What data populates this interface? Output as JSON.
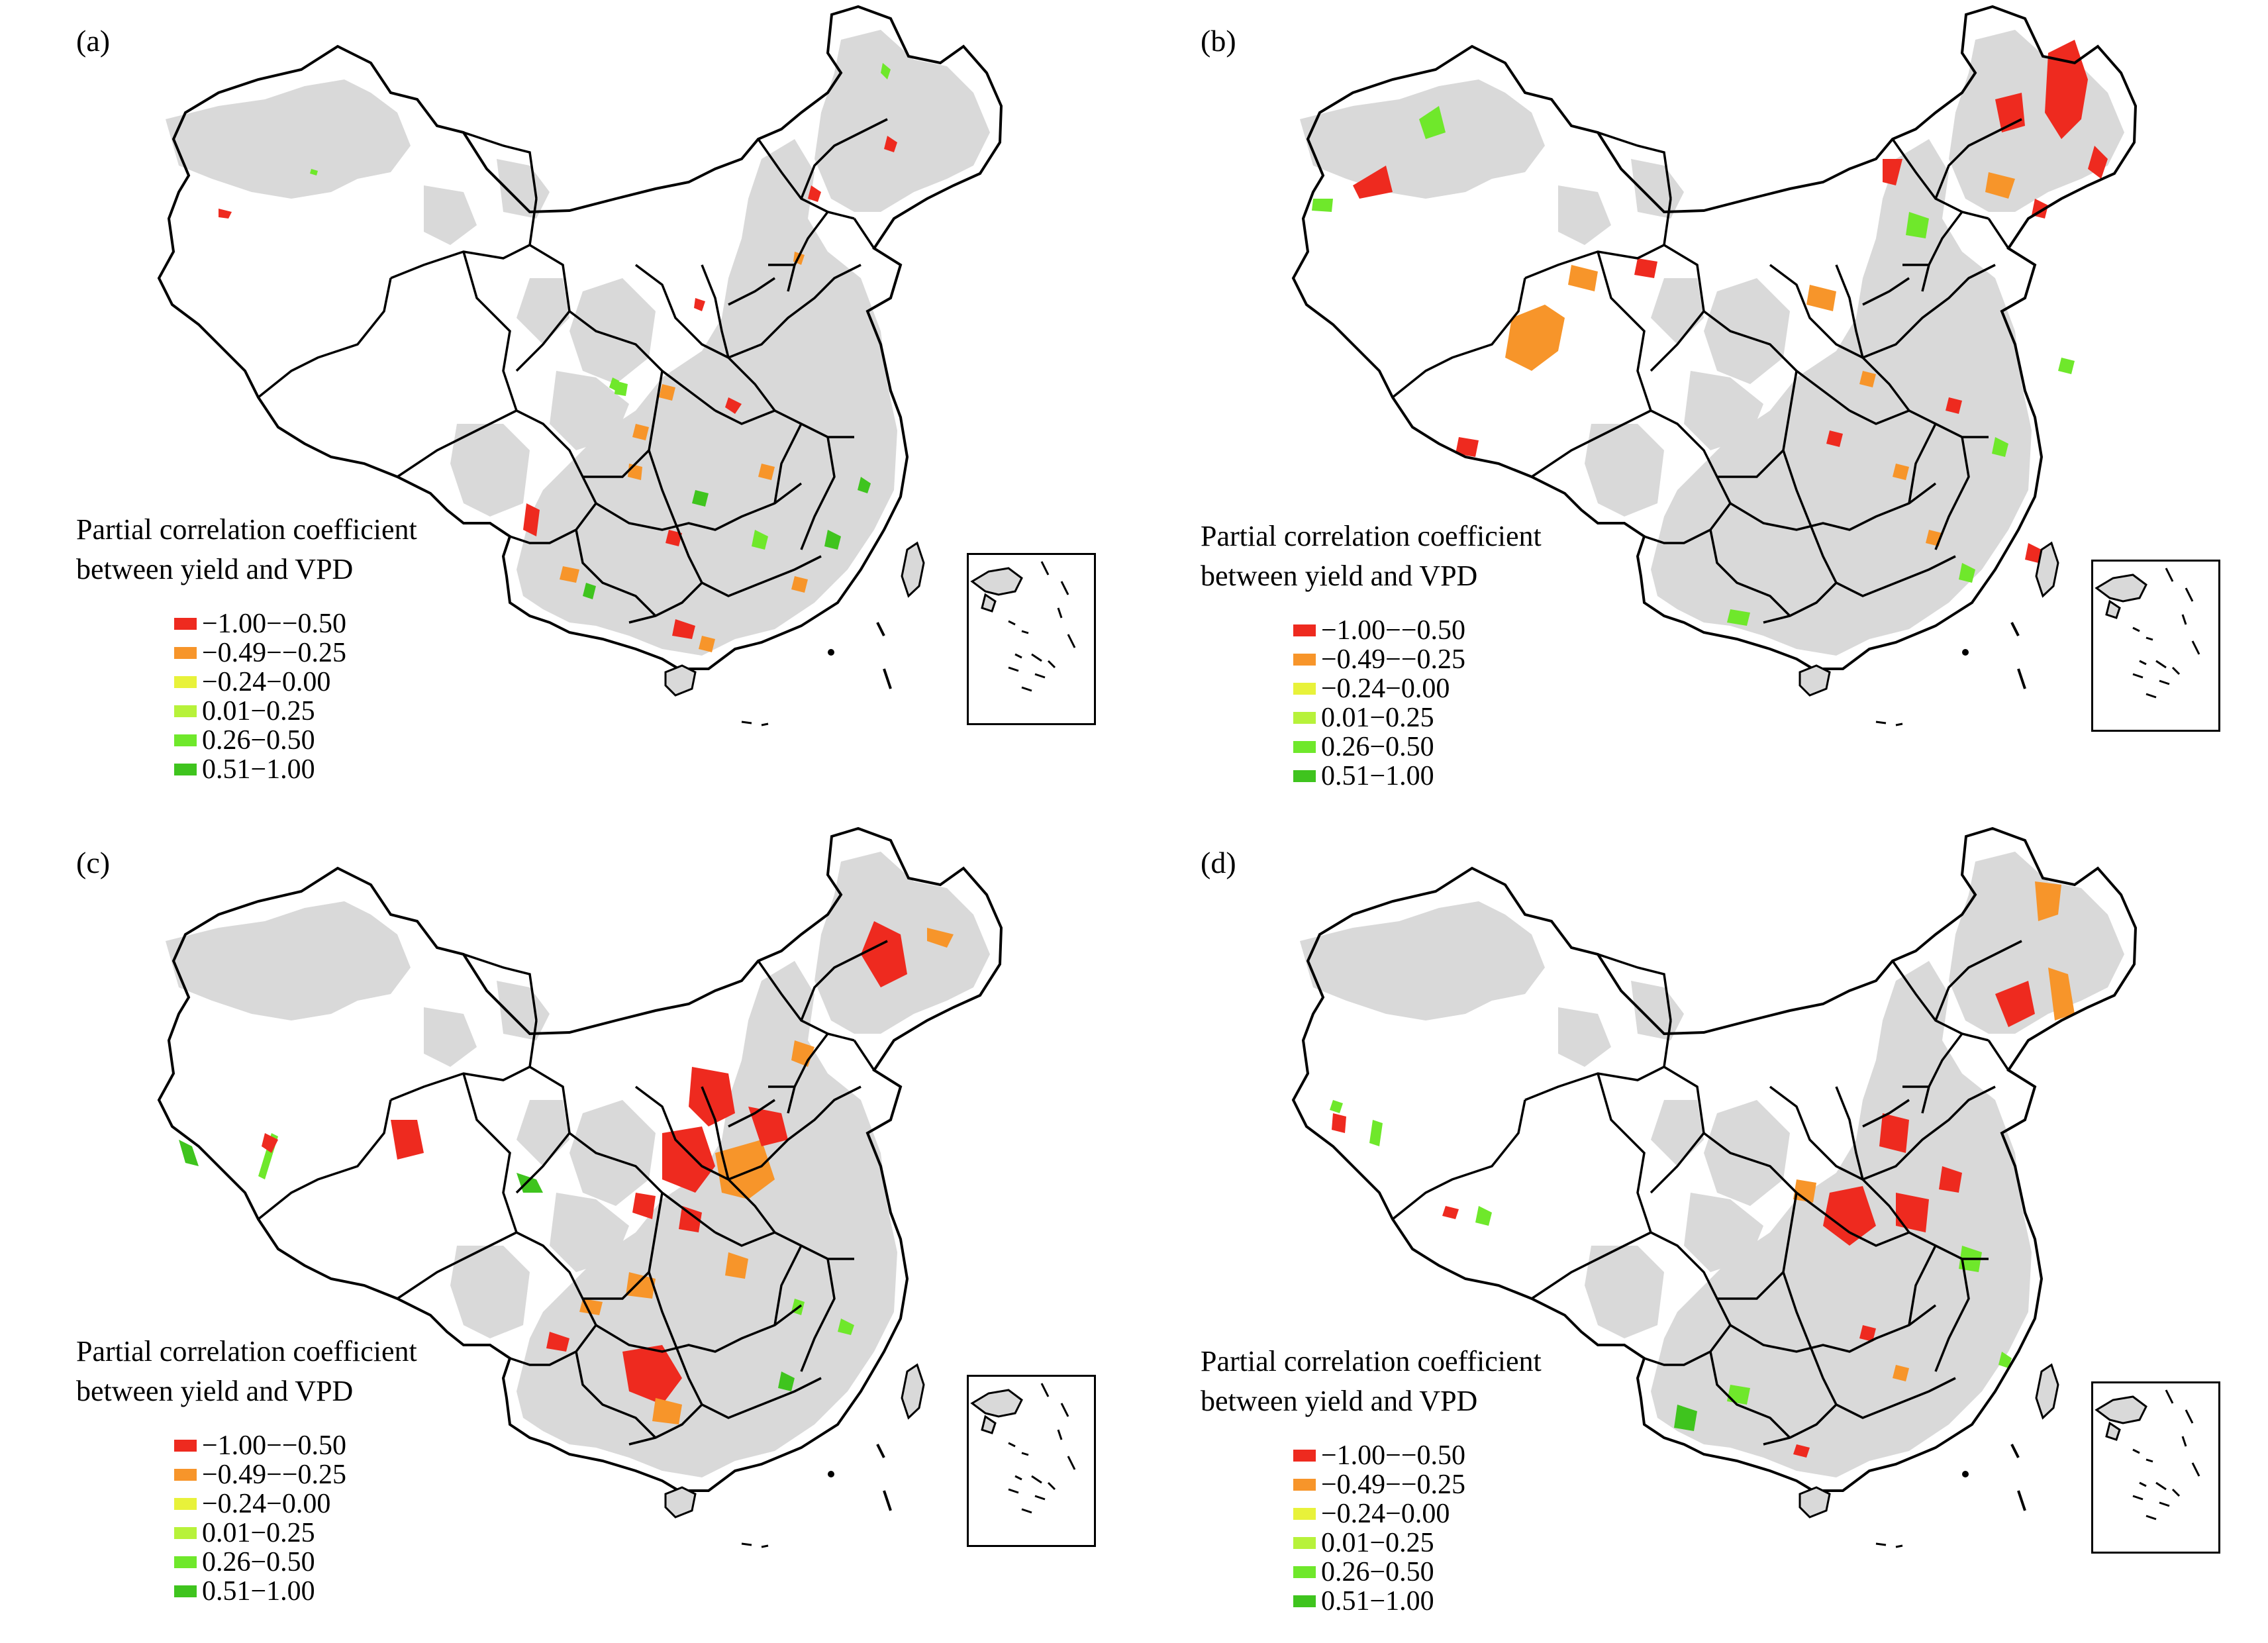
{
  "figure": {
    "panels": [
      {
        "label": "(a)"
      },
      {
        "label": "(b)"
      },
      {
        "label": "(c)"
      },
      {
        "label": "(d)"
      }
    ],
    "legend": {
      "title_line1": "Partial correlation coefficient",
      "title_line2": "between yield and VPD",
      "classes": [
        {
          "label": "−1.00−−0.50",
          "color": "#ee2a1f"
        },
        {
          "label": "−0.49−−0.25",
          "color": "#f7952a"
        },
        {
          "label": "−0.24−0.00",
          "color": "#e8f23a"
        },
        {
          "label": "0.01−0.25",
          "color": "#b7f23a"
        },
        {
          "label": "0.26−0.50",
          "color": "#6fe82b"
        },
        {
          "label": "0.51−1.00",
          "color": "#3fc41e"
        }
      ]
    },
    "colors": {
      "cropland": "#d9d9d9",
      "boundary": "#000000",
      "background": "#ffffff"
    }
  }
}
